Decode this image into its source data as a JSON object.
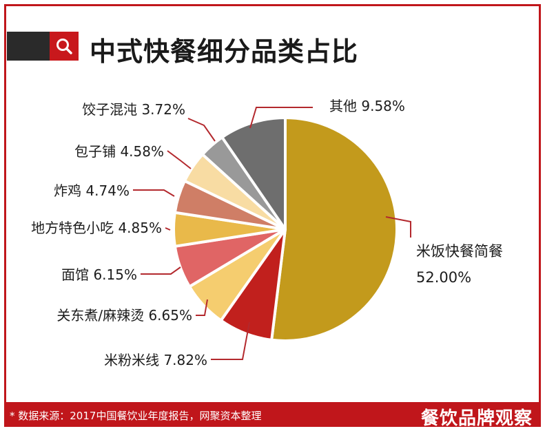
{
  "title": "中式快餐细分品类占比",
  "footer": {
    "source": "* 数据来源：2017中国餐饮业年度报告，网聚资本整理",
    "brand": "餐饮品牌观察"
  },
  "icons": {
    "search": "search-icon"
  },
  "colors": {
    "brand_red": "#c0161b",
    "leader": "#b3282d"
  },
  "chart_data": {
    "type": "pie",
    "title": "中式快餐细分品类占比",
    "unit": "%",
    "slices": [
      {
        "name": "米饭快餐简餐",
        "value": 52.0,
        "label": "52.00%",
        "color": "#c39a1c"
      },
      {
        "name": "米粉米线",
        "value": 7.82,
        "label": "米粉米线 7.82%",
        "color": "#c1201d"
      },
      {
        "name": "关东煮/麻辣烫",
        "value": 6.65,
        "label": "关东煮/麻辣烫 6.65%",
        "color": "#f5cd6f"
      },
      {
        "name": "面馆",
        "value": 6.15,
        "label": "面馆 6.15%",
        "color": "#e06565"
      },
      {
        "name": "地方特色小吃",
        "value": 4.85,
        "label": "地方特色小吃 4.85%",
        "color": "#e9b94a"
      },
      {
        "name": "炸鸡",
        "value": 4.74,
        "label": "炸鸡 4.74%",
        "color": "#cf7e66"
      },
      {
        "name": "包子铺",
        "value": 4.58,
        "label": "包子铺 4.58%",
        "color": "#f8dca3"
      },
      {
        "name": "饺子混沌",
        "value": 3.72,
        "label": "饺子混沌 3.72%",
        "color": "#999999"
      },
      {
        "name": "其他",
        "value": 9.58,
        "label": "其他 9.58%",
        "color": "#6e6e6e"
      }
    ]
  }
}
